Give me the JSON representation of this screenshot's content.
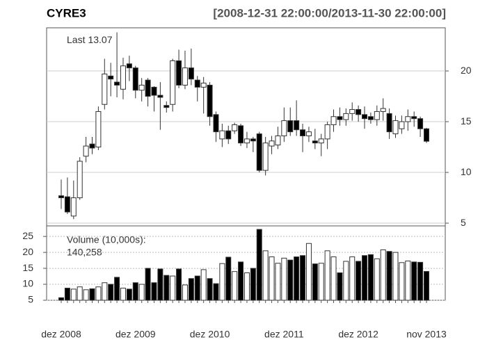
{
  "chart_data": {
    "type": "candlestick",
    "title": "CYRE3",
    "subtitle": "[2008-12-31 22:00:00/2013-11-30 22:00:00]",
    "categories": [
      "dez 2008",
      null,
      null,
      null,
      null,
      null,
      null,
      null,
      null,
      null,
      null,
      null,
      "dez 2009",
      null,
      null,
      null,
      null,
      null,
      null,
      null,
      null,
      null,
      null,
      null,
      "dez 2010",
      null,
      null,
      null,
      null,
      null,
      null,
      null,
      null,
      null,
      null,
      null,
      "dez 2011",
      null,
      null,
      null,
      null,
      null,
      null,
      null,
      null,
      null,
      null,
      null,
      "dez 2012",
      null,
      null,
      null,
      null,
      null,
      null,
      null,
      null,
      null,
      null,
      "nov 2013"
    ],
    "open": [
      7.7,
      7.6,
      5.7,
      7.5,
      11.6,
      12.8,
      12.5,
      16.7,
      19.5,
      18.9,
      18.2,
      20.7,
      20.3,
      18.1,
      19.1,
      18.4,
      17.6,
      16.6,
      16.7,
      21.0,
      18.6,
      20.3,
      19.1,
      18.4,
      18.6,
      15.7,
      13.3,
      14.1,
      14.1,
      14.6,
      12.9,
      13.3,
      13.8,
      10.2,
      12.6,
      12.7,
      13.6,
      15.1,
      15.1,
      14.2,
      13.6,
      13.1,
      12.9,
      13.3,
      14.7,
      15.5,
      15.2,
      15.8,
      16.2,
      15.7,
      15.5,
      15.2,
      16.0,
      15.8,
      13.8,
      14.3,
      15.0,
      15.5,
      15.3,
      14.3
    ],
    "high": [
      9.3,
      9.5,
      9.2,
      11.5,
      13.5,
      13.5,
      16.5,
      21.2,
      20.8,
      23.8,
      21.3,
      21.5,
      20.5,
      19.3,
      19.3,
      18.5,
      18.9,
      17.0,
      21.2,
      22.1,
      22.0,
      22.2,
      19.5,
      19.4,
      18.9,
      16.0,
      14.8,
      14.6,
      14.9,
      14.8,
      14.0,
      13.5,
      14.0,
      13.5,
      13.6,
      14.5,
      16.4,
      16.4,
      17.1,
      14.8,
      14.5,
      14.3,
      13.8,
      15.0,
      16.2,
      16.4,
      16.3,
      16.9,
      16.6,
      16.5,
      15.9,
      16.6,
      17.3,
      16.3,
      15.6,
      15.6,
      16.2,
      16.0,
      15.5,
      14.4
    ],
    "low": [
      6.4,
      5.9,
      5.4,
      7.3,
      11.0,
      11.8,
      12.2,
      16.2,
      17.5,
      17.4,
      17.2,
      19.0,
      17.3,
      17.0,
      16.5,
      16.0,
      14.2,
      15.9,
      16.0,
      18.3,
      18.2,
      18.6,
      17.0,
      15.8,
      14.6,
      13.0,
      12.5,
      12.8,
      13.8,
      12.6,
      12.4,
      12.0,
      10.0,
      9.7,
      11.8,
      12.3,
      13.0,
      13.6,
      13.6,
      12.0,
      13.0,
      12.3,
      11.6,
      12.3,
      14.0,
      14.6,
      14.6,
      15.1,
      15.0,
      14.3,
      14.8,
      14.6,
      15.1,
      13.3,
      13.4,
      13.8,
      14.1,
      14.5,
      13.5,
      12.9
    ],
    "close": [
      7.5,
      6.1,
      7.5,
      11.1,
      12.6,
      12.4,
      16.0,
      19.7,
      19.2,
      18.6,
      20.5,
      20.3,
      18.1,
      18.6,
      17.5,
      17.6,
      17.4,
      16.4,
      21.0,
      18.6,
      20.3,
      19.2,
      18.4,
      18.8,
      15.5,
      14.0,
      14.1,
      13.3,
      14.7,
      12.9,
      13.3,
      13.1,
      10.2,
      12.9,
      13.1,
      13.6,
      15.1,
      14.0,
      14.2,
      13.6,
      14.0,
      12.9,
      13.3,
      14.7,
      15.5,
      15.2,
      15.8,
      16.2,
      15.7,
      15.3,
      15.2,
      16.0,
      16.3,
      14.0,
      15.1,
      15.0,
      15.5,
      15.3,
      14.3,
      13.07
    ],
    "last_label": "Last",
    "up_color": "#ffffff",
    "down_color": "#000000",
    "ylim": [
      4.73,
      24.25
    ],
    "yticks": [
      5,
      10,
      15,
      20
    ],
    "grid": true,
    "volume": {
      "name": "Volume (10,000s):",
      "values": [
        5.8,
        8.8,
        8.5,
        9.2,
        8.3,
        8.6,
        9.2,
        10.5,
        10.0,
        12.2,
        8.8,
        8.5,
        10.5,
        10.0,
        15.0,
        10.5,
        14.8,
        12.8,
        12.6,
        14.8,
        9.8,
        11.8,
        12.6,
        14.6,
        11.8,
        10.2,
        16.5,
        18.5,
        14.0,
        17.0,
        13.6,
        15.0,
        27.2,
        20.5,
        18.6,
        16.6,
        18.2,
        17.6,
        18.6,
        19.0,
        22.8,
        16.4,
        16.6,
        20.5,
        18.6,
        13.6,
        17.2,
        18.6,
        17.2,
        19.0,
        19.3,
        18.0,
        20.8,
        20.3,
        20.0,
        16.8,
        17.3,
        17.0,
        16.9,
        14.0258
      ],
      "value_labels": [
        null,
        null,
        null,
        null,
        null,
        null,
        null,
        null,
        null,
        null,
        null,
        null,
        null,
        null,
        null,
        null,
        null,
        null,
        null,
        null,
        null,
        null,
        null,
        null,
        null,
        null,
        null,
        null,
        null,
        null,
        null,
        null,
        null,
        null,
        null,
        null,
        null,
        null,
        null,
        null,
        null,
        null,
        null,
        null,
        null,
        null,
        null,
        null,
        null,
        null,
        null,
        null,
        null,
        null,
        null,
        null,
        null,
        null,
        null,
        "140,258"
      ],
      "ylim": [
        5,
        28.3
      ],
      "yticks": [
        5,
        10,
        15,
        20,
        25
      ]
    }
  }
}
